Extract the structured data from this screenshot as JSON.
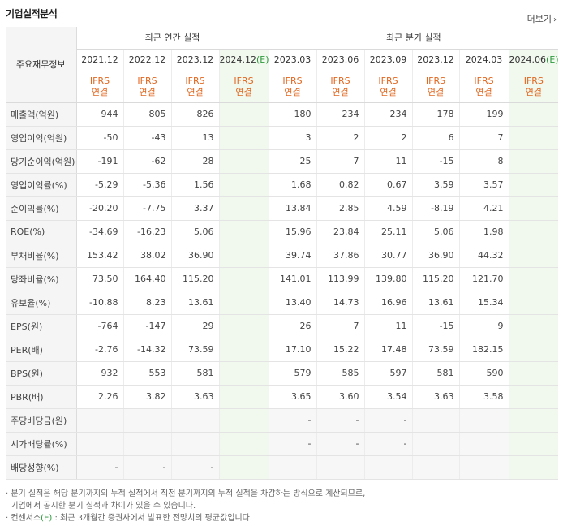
{
  "header": {
    "title": "기업실적분석",
    "more_label": "더보기"
  },
  "table": {
    "row_label_header": "주요재무정보",
    "group_annual": "최근 연간 실적",
    "group_quarter": "최근 분기 실적",
    "periods": [
      "2021.12",
      "2022.12",
      "2023.12",
      "2024.12",
      "2023.03",
      "2023.06",
      "2023.09",
      "2023.12",
      "2024.03",
      "2024.06"
    ],
    "est_suffix": "(E)",
    "ifrs": "IFRS",
    "consolidated": "연결",
    "rows": [
      {
        "label": "매출액(억원)",
        "values": [
          "944",
          "805",
          "826",
          "",
          "180",
          "234",
          "234",
          "178",
          "199",
          ""
        ]
      },
      {
        "label": "영업이익(억원)",
        "values": [
          "-50",
          "-43",
          "13",
          "",
          "3",
          "2",
          "2",
          "6",
          "7",
          ""
        ]
      },
      {
        "label": "당기순이익(억원)",
        "values": [
          "-191",
          "-62",
          "28",
          "",
          "25",
          "7",
          "11",
          "-15",
          "8",
          ""
        ]
      },
      {
        "label": "영업이익률(%)",
        "values": [
          "-5.29",
          "-5.36",
          "1.56",
          "",
          "1.68",
          "0.82",
          "0.67",
          "3.59",
          "3.57",
          ""
        ]
      },
      {
        "label": "순이익률(%)",
        "values": [
          "-20.20",
          "-7.75",
          "3.37",
          "",
          "13.84",
          "2.85",
          "4.59",
          "-8.19",
          "4.21",
          ""
        ]
      },
      {
        "label": "ROE(%)",
        "values": [
          "-34.69",
          "-16.23",
          "5.06",
          "",
          "15.96",
          "23.84",
          "25.11",
          "5.06",
          "1.98",
          ""
        ]
      },
      {
        "label": "부채비율(%)",
        "values": [
          "153.42",
          "38.02",
          "36.90",
          "",
          "39.74",
          "37.86",
          "30.77",
          "36.90",
          "44.32",
          ""
        ]
      },
      {
        "label": "당좌비율(%)",
        "values": [
          "73.50",
          "164.40",
          "115.20",
          "",
          "141.01",
          "113.99",
          "139.80",
          "115.20",
          "121.70",
          ""
        ]
      },
      {
        "label": "유보율(%)",
        "values": [
          "-10.88",
          "8.23",
          "13.61",
          "",
          "13.40",
          "14.73",
          "16.96",
          "13.61",
          "15.34",
          ""
        ]
      },
      {
        "label": "EPS(원)",
        "values": [
          "-764",
          "-147",
          "29",
          "",
          "26",
          "7",
          "11",
          "-15",
          "9",
          ""
        ]
      },
      {
        "label": "PER(배)",
        "values": [
          "-2.76",
          "-14.32",
          "73.59",
          "",
          "17.10",
          "15.22",
          "17.48",
          "73.59",
          "182.15",
          ""
        ]
      },
      {
        "label": "BPS(원)",
        "values": [
          "932",
          "553",
          "581",
          "",
          "579",
          "585",
          "597",
          "581",
          "590",
          ""
        ]
      },
      {
        "label": "PBR(배)",
        "values": [
          "2.26",
          "3.82",
          "3.63",
          "",
          "3.65",
          "3.60",
          "3.54",
          "3.63",
          "3.58",
          ""
        ]
      },
      {
        "label": "주당배당금(원)",
        "values": [
          "",
          "",
          "",
          "",
          "-",
          "-",
          "-",
          "",
          "",
          ""
        ]
      },
      {
        "label": "시가배당률(%)",
        "values": [
          "",
          "",
          "",
          "",
          "-",
          "-",
          "-",
          "",
          "",
          ""
        ]
      },
      {
        "label": "배당성향(%)",
        "values": [
          "-",
          "-",
          "-",
          "",
          "",
          "",
          "",
          "",
          "",
          ""
        ]
      }
    ]
  },
  "notes": {
    "line1": "· 분기 실적은 해당 분기까지의 누적 실적에서 직전 분기까지의 누적 실적을 차감하는 방식으로 계산되므로,",
    "line2": "  기업에서 공시한 분기 실적과 차이가 있을 수 있습니다.",
    "line3_pre": "· 컨센서스",
    "line3_mark": "(E)",
    "line3_post": " : 최근 3개월간 증권사에서 발표한 전망치의 평균값입니다."
  },
  "colors": {
    "ifrs": "#e2671f",
    "negative": "#e02c2c",
    "estimate_bg": "#f1f8ee",
    "estimate_mark": "#2b9a3b"
  }
}
